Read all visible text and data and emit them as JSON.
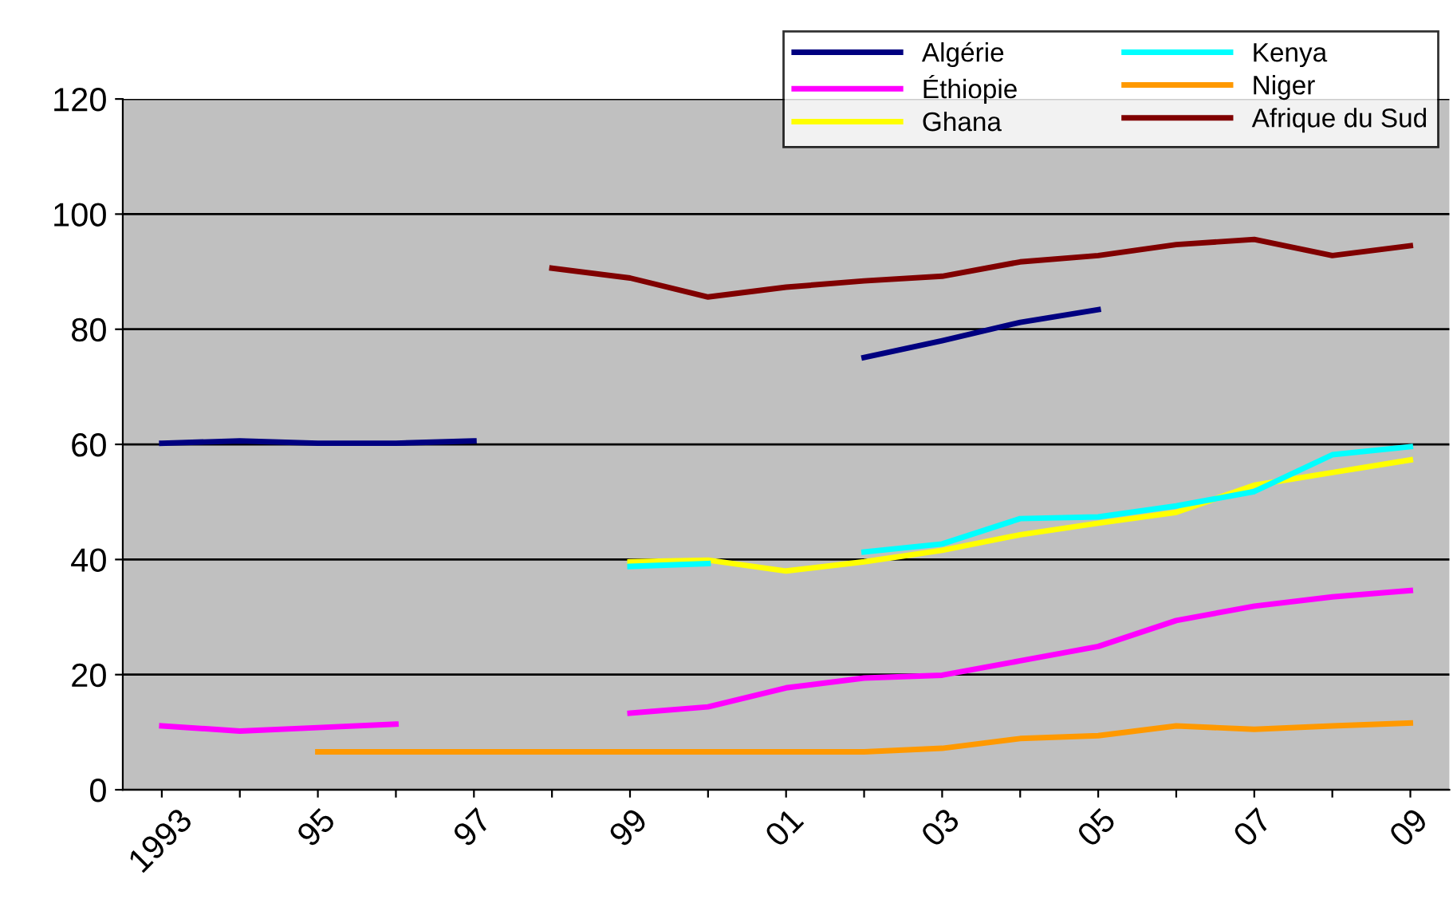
{
  "chart_data": {
    "type": "line",
    "categories": [
      "1993",
      null,
      "95",
      null,
      "97",
      null,
      "99",
      null,
      "01",
      null,
      "03",
      null,
      "05",
      null,
      "07",
      null,
      "09"
    ],
    "series": [
      {
        "name": "Algérie",
        "color": "#000080",
        "values": [
          60.2,
          60.6,
          60.2,
          60.2,
          60.6,
          null,
          null,
          null,
          null,
          75.1,
          78.0,
          81.2,
          83.4,
          null,
          null,
          null,
          null
        ]
      },
      {
        "name": "Éthiopie",
        "color": "#ff00ff",
        "values": [
          11.1,
          10.2,
          10.8,
          11.4,
          null,
          null,
          13.3,
          14.4,
          17.7,
          19.4,
          19.9,
          22.4,
          24.9,
          29.4,
          31.9,
          33.5,
          34.6
        ]
      },
      {
        "name": "Ghana",
        "color": "#ffff00",
        "values": [
          null,
          null,
          null,
          null,
          null,
          null,
          39.6,
          39.9,
          38.0,
          39.6,
          41.6,
          44.3,
          46.3,
          48.2,
          52.9,
          55.1,
          57.3
        ]
      },
      {
        "name": "Kenya",
        "color": "#00ffff",
        "values": [
          null,
          null,
          null,
          null,
          null,
          null,
          38.8,
          39.3,
          null,
          41.3,
          42.7,
          47.1,
          47.4,
          49.3,
          51.8,
          58.2,
          59.6
        ]
      },
      {
        "name": "Niger",
        "color": "#ff9900",
        "values": [
          null,
          null,
          6.6,
          6.6,
          6.6,
          6.6,
          6.6,
          6.6,
          6.6,
          6.6,
          7.2,
          8.9,
          9.4,
          11.1,
          10.5,
          11.1,
          11.6
        ]
      },
      {
        "name": "Afrique du Sud",
        "color": "#800000",
        "values": [
          null,
          null,
          null,
          null,
          null,
          90.6,
          88.9,
          85.6,
          87.3,
          88.4,
          89.2,
          91.7,
          92.8,
          94.7,
          95.6,
          92.8,
          94.5
        ]
      }
    ],
    "ylim": [
      0,
      120
    ],
    "yticks": [
      0,
      20,
      40,
      60,
      80,
      100,
      120
    ],
    "grid": "y",
    "legend": "top right"
  }
}
